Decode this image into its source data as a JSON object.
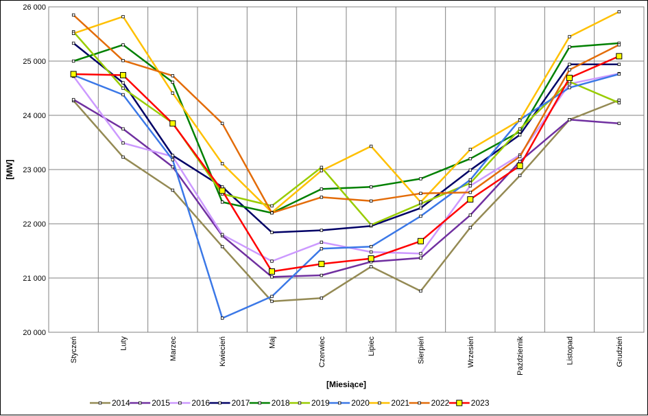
{
  "chart_data": {
    "type": "line",
    "title": "",
    "xlabel": "[Miesiące]",
    "ylabel": "[MW]",
    "ylim": [
      20000,
      26000
    ],
    "ytick_step": 1000,
    "yticks": [
      "20 000",
      "21 000",
      "22 000",
      "23 000",
      "24 000",
      "25 000",
      "26 000"
    ],
    "categories": [
      "Styczeń",
      "Luty",
      "Marzec",
      "Kwiecień",
      "Maj",
      "Czerwiec",
      "Lipiec",
      "Sierpień",
      "Wrzesień",
      "Październik",
      "Listopad",
      "Grudzień"
    ],
    "grid": true,
    "legend_position": "bottom",
    "series": [
      {
        "name": "2014",
        "color": "#948a54",
        "marker": "small",
        "values": [
          24270,
          23230,
          22620,
          21580,
          20570,
          20630,
          21210,
          20760,
          21930,
          22890,
          23920,
          24280
        ]
      },
      {
        "name": "2015",
        "color": "#7030a0",
        "marker": "small",
        "values": [
          24290,
          23750,
          23050,
          21780,
          21020,
          21050,
          21300,
          21370,
          22160,
          23150,
          23920,
          23850
        ]
      },
      {
        "name": "2016",
        "color": "#cc99ff",
        "marker": "small",
        "values": [
          24720,
          23490,
          23240,
          21800,
          21310,
          21660,
          21480,
          21450,
          22700,
          23270,
          24580,
          24770
        ]
      },
      {
        "name": "2017",
        "color": "#000066",
        "marker": "small",
        "values": [
          25330,
          24600,
          23260,
          22680,
          21840,
          21880,
          21960,
          22290,
          22990,
          23640,
          24940,
          24940
        ]
      },
      {
        "name": "2018",
        "color": "#008000",
        "marker": "small",
        "values": [
          25000,
          25300,
          24610,
          22400,
          22200,
          22640,
          22680,
          22830,
          23200,
          23700,
          25260,
          25330
        ]
      },
      {
        "name": "2019",
        "color": "#99cc00",
        "marker": "small",
        "values": [
          25540,
          24500,
          23860,
          22550,
          22330,
          23040,
          21980,
          22370,
          22750,
          23750,
          24620,
          24230
        ]
      },
      {
        "name": "2020",
        "color": "#3b78e7",
        "marker": "small",
        "values": [
          24740,
          24380,
          23180,
          20260,
          20660,
          21540,
          21580,
          22140,
          22810,
          23920,
          24510,
          24760
        ]
      },
      {
        "name": "2021",
        "color": "#ffc000",
        "marker": "small",
        "values": [
          25510,
          25820,
          24410,
          23110,
          22210,
          22980,
          23430,
          22400,
          23370,
          23910,
          25450,
          25910
        ]
      },
      {
        "name": "2022",
        "color": "#e36c09",
        "marker": "small",
        "values": [
          25850,
          25010,
          24730,
          23850,
          22200,
          22490,
          22420,
          22560,
          22580,
          23240,
          24840,
          25300
        ]
      },
      {
        "name": "2023",
        "color": "#ff0000",
        "marker": "big",
        "values": [
          24760,
          24740,
          23850,
          22610,
          21120,
          21260,
          21360,
          21680,
          22450,
          23070,
          24690,
          25090
        ]
      }
    ]
  }
}
